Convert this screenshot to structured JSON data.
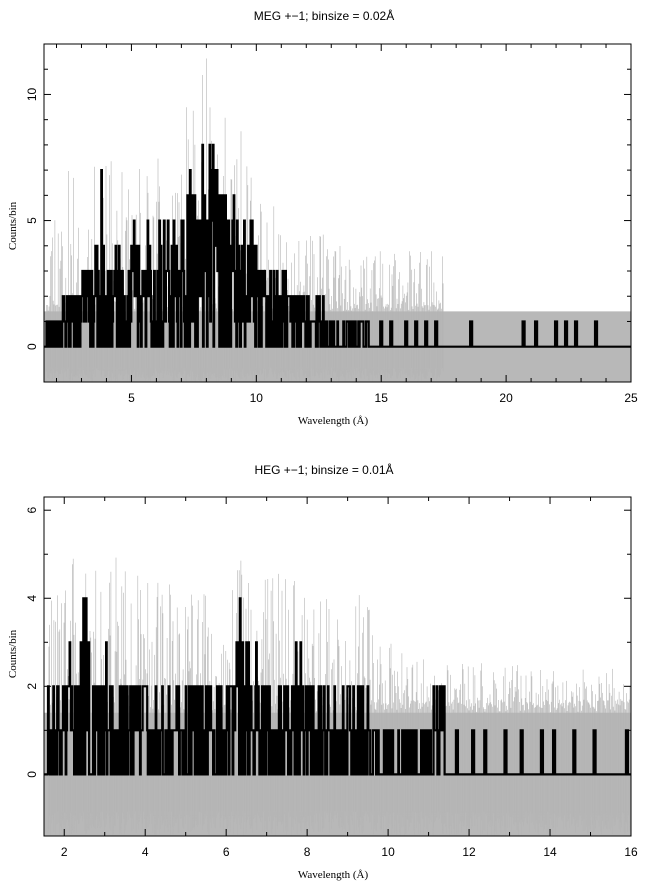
{
  "chart_data": [
    {
      "type": "line",
      "title": "MEG +−1; binsize = 0.02Å",
      "xlabel": "Wavelength (Å)",
      "ylabel": "Counts/bin",
      "xlim": [
        1.5,
        25.0
      ],
      "ylim": [
        -1.4,
        12.0
      ],
      "xticks": [
        5,
        10,
        15,
        20,
        25
      ],
      "xtick_labels": [
        "5",
        "10",
        "15",
        "20",
        "25"
      ],
      "yticks": [
        0,
        5,
        10
      ],
      "ytick_labels": [
        "0",
        "5",
        "10"
      ],
      "minor_xticks": [
        2,
        3,
        4,
        6,
        7,
        8,
        9,
        11,
        12,
        13,
        14,
        16,
        17,
        18,
        19,
        21,
        22,
        23,
        24
      ],
      "minor_yticks": [
        1,
        2,
        3,
        4,
        6,
        7,
        8,
        9,
        11
      ],
      "error_band": [
        -1.4,
        1.4
      ],
      "series": [
        {
          "style": "error-traces",
          "color": "#b4b4b4",
          "range": [
            1.6,
            17.5
          ],
          "x": [
            3.5,
            3.8,
            4.0,
            5.1,
            6.3,
            6.9,
            7.4,
            7.9,
            8.1,
            8.3,
            8.5,
            8.7,
            9.0,
            9.6,
            10.4,
            11.4,
            12.6,
            13.8
          ],
          "y": [
            7.2,
            8.0,
            8.5,
            6.8,
            8.6,
            10.4,
            9.5,
            11.2,
            12.0,
            12.0,
            11.2,
            10.6,
            8.8,
            8.4,
            6.2,
            5.0,
            4.5,
            3.8
          ]
        },
        {
          "style": "histogram",
          "color": "#000000",
          "range": [
            1.6,
            14.5
          ],
          "x": [
            1.9,
            2.2,
            2.5,
            2.9,
            3.2,
            3.5,
            3.8,
            3.9,
            4.0,
            4.4,
            4.8,
            5.1,
            5.4,
            5.7,
            6.0,
            6.2,
            6.5,
            6.8,
            7.0,
            7.2,
            7.4,
            7.6,
            7.8,
            8.0,
            8.2,
            8.35,
            8.5,
            8.7,
            8.9,
            9.1,
            9.4,
            9.7,
            10.0,
            10.5,
            11.0,
            11.5,
            12.0,
            12.5,
            13.0,
            13.5,
            14.0
          ],
          "y": [
            1,
            2,
            2,
            3,
            3,
            4,
            7,
            4,
            3,
            4,
            3,
            5,
            4,
            5,
            4,
            5,
            6,
            6,
            6,
            7,
            7,
            6,
            8,
            9,
            8,
            9,
            7,
            8,
            6,
            6,
            5,
            5,
            4,
            3,
            3,
            2,
            2,
            2,
            1,
            1,
            1
          ],
          "spikes_x": [
            15.0,
            15.4,
            16.0,
            16.4,
            16.8,
            17.2,
            18.6,
            20.7,
            21.2,
            22.0,
            22.4,
            22.8,
            23.6
          ],
          "spikes_y": [
            1,
            1,
            1,
            1,
            1,
            1,
            1,
            1,
            1,
            1,
            1,
            1,
            1
          ],
          "baseline": 0
        }
      ]
    },
    {
      "type": "line",
      "title": "HEG +−1; binsize = 0.01Å",
      "xlabel": "Wavelength (Å)",
      "ylabel": "Counts/bin",
      "xlim": [
        1.5,
        16.0
      ],
      "ylim": [
        -1.4,
        6.3
      ],
      "xticks": [
        2,
        4,
        6,
        8,
        10,
        12,
        14,
        16
      ],
      "xtick_labels": [
        "2",
        "4",
        "6",
        "8",
        "10",
        "12",
        "14",
        "16"
      ],
      "yticks": [
        0,
        2,
        4,
        6
      ],
      "ytick_labels": [
        "0",
        "2",
        "4",
        "6"
      ],
      "minor_xticks": [
        3,
        5,
        7,
        9,
        11,
        13,
        15
      ],
      "minor_yticks": [
        1,
        3,
        5
      ],
      "error_band": [
        -1.4,
        1.4
      ],
      "series": [
        {
          "style": "error-traces",
          "color": "#b4b4b4",
          "range": [
            1.6,
            16.0
          ],
          "x": [
            2.0,
            2.5,
            3.0,
            3.5,
            4.0,
            4.5,
            5.0,
            5.4,
            5.9,
            6.4,
            6.9,
            7.4,
            7.9,
            8.4,
            8.9,
            9.3,
            9.7,
            10.2,
            11.2,
            13.4,
            15.2
          ],
          "y": [
            4.3,
            6.2,
            4.7,
            5.4,
            4.4,
            4.7,
            4.4,
            4.7,
            4.2,
            5.5,
            4.8,
            5.0,
            4.4,
            4.5,
            3.8,
            4.6,
            3.4,
            2.9,
            2.6,
            2.5,
            2.4
          ]
        },
        {
          "style": "histogram",
          "color": "#000000",
          "range": [
            1.6,
            11.4
          ],
          "x": [
            1.9,
            2.1,
            2.3,
            2.5,
            2.7,
            3.0,
            3.3,
            3.6,
            3.8,
            4.1,
            4.4,
            4.7,
            5.0,
            5.3,
            5.6,
            5.9,
            6.2,
            6.4,
            6.6,
            6.9,
            7.2,
            7.5,
            7.8,
            8.2,
            8.5,
            8.8,
            9.1,
            9.4,
            9.7,
            10.0,
            10.4,
            10.8,
            11.2
          ],
          "y": [
            2,
            3,
            2,
            4,
            3,
            3,
            2,
            2,
            3,
            2,
            2,
            2,
            2,
            3,
            2,
            2,
            3,
            4,
            3,
            3,
            2,
            2,
            3,
            2,
            2,
            2,
            3,
            2,
            1,
            1,
            1,
            1,
            2
          ],
          "spikes_x": [
            11.7,
            12.1,
            12.4,
            12.9,
            13.3,
            13.8,
            14.1,
            14.6,
            15.1,
            15.9
          ],
          "spikes_y": [
            1,
            1,
            1,
            1,
            1,
            1,
            1,
            1,
            1,
            1
          ],
          "baseline": 0
        }
      ]
    }
  ]
}
